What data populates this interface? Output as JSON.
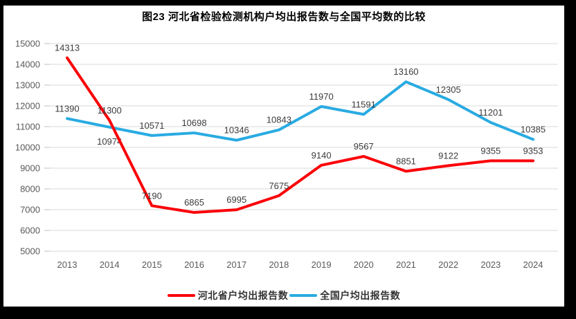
{
  "title": "图23  河北省检验检测机构户均出报告数与全国平均数的比较",
  "chart_data": {
    "type": "line",
    "title": "图23  河北省检验检测机构户均出报告数与全国平均数的比较",
    "x": [
      2013,
      2014,
      2015,
      2016,
      2017,
      2018,
      2019,
      2020,
      2021,
      2022,
      2023,
      2024
    ],
    "series": [
      {
        "name": "河北省户均出报告数",
        "color": "#fb0007",
        "values": [
          14313,
          11300,
          7190,
          6865,
          6995,
          7675,
          9140,
          9567,
          8851,
          9122,
          9355,
          9353
        ]
      },
      {
        "name": "全国户均出报告数",
        "color": "#29abe2",
        "values": [
          11390,
          10974,
          10571,
          10698,
          10346,
          10843,
          11970,
          11591,
          13160,
          12305,
          11201,
          10385
        ],
        "label_below_indices": [
          1
        ]
      }
    ],
    "ylim": [
      5000,
      15000
    ],
    "ytick_step": 1000,
    "yticks": [
      5000,
      6000,
      7000,
      8000,
      9000,
      10000,
      11000,
      12000,
      13000,
      14000,
      15000
    ],
    "xlabel": "",
    "ylabel": "",
    "grid": "horizontal",
    "gridline_color": "#d9d9d9",
    "data_labels": true,
    "legend_position": "bottom",
    "frame_color": "#000000"
  }
}
